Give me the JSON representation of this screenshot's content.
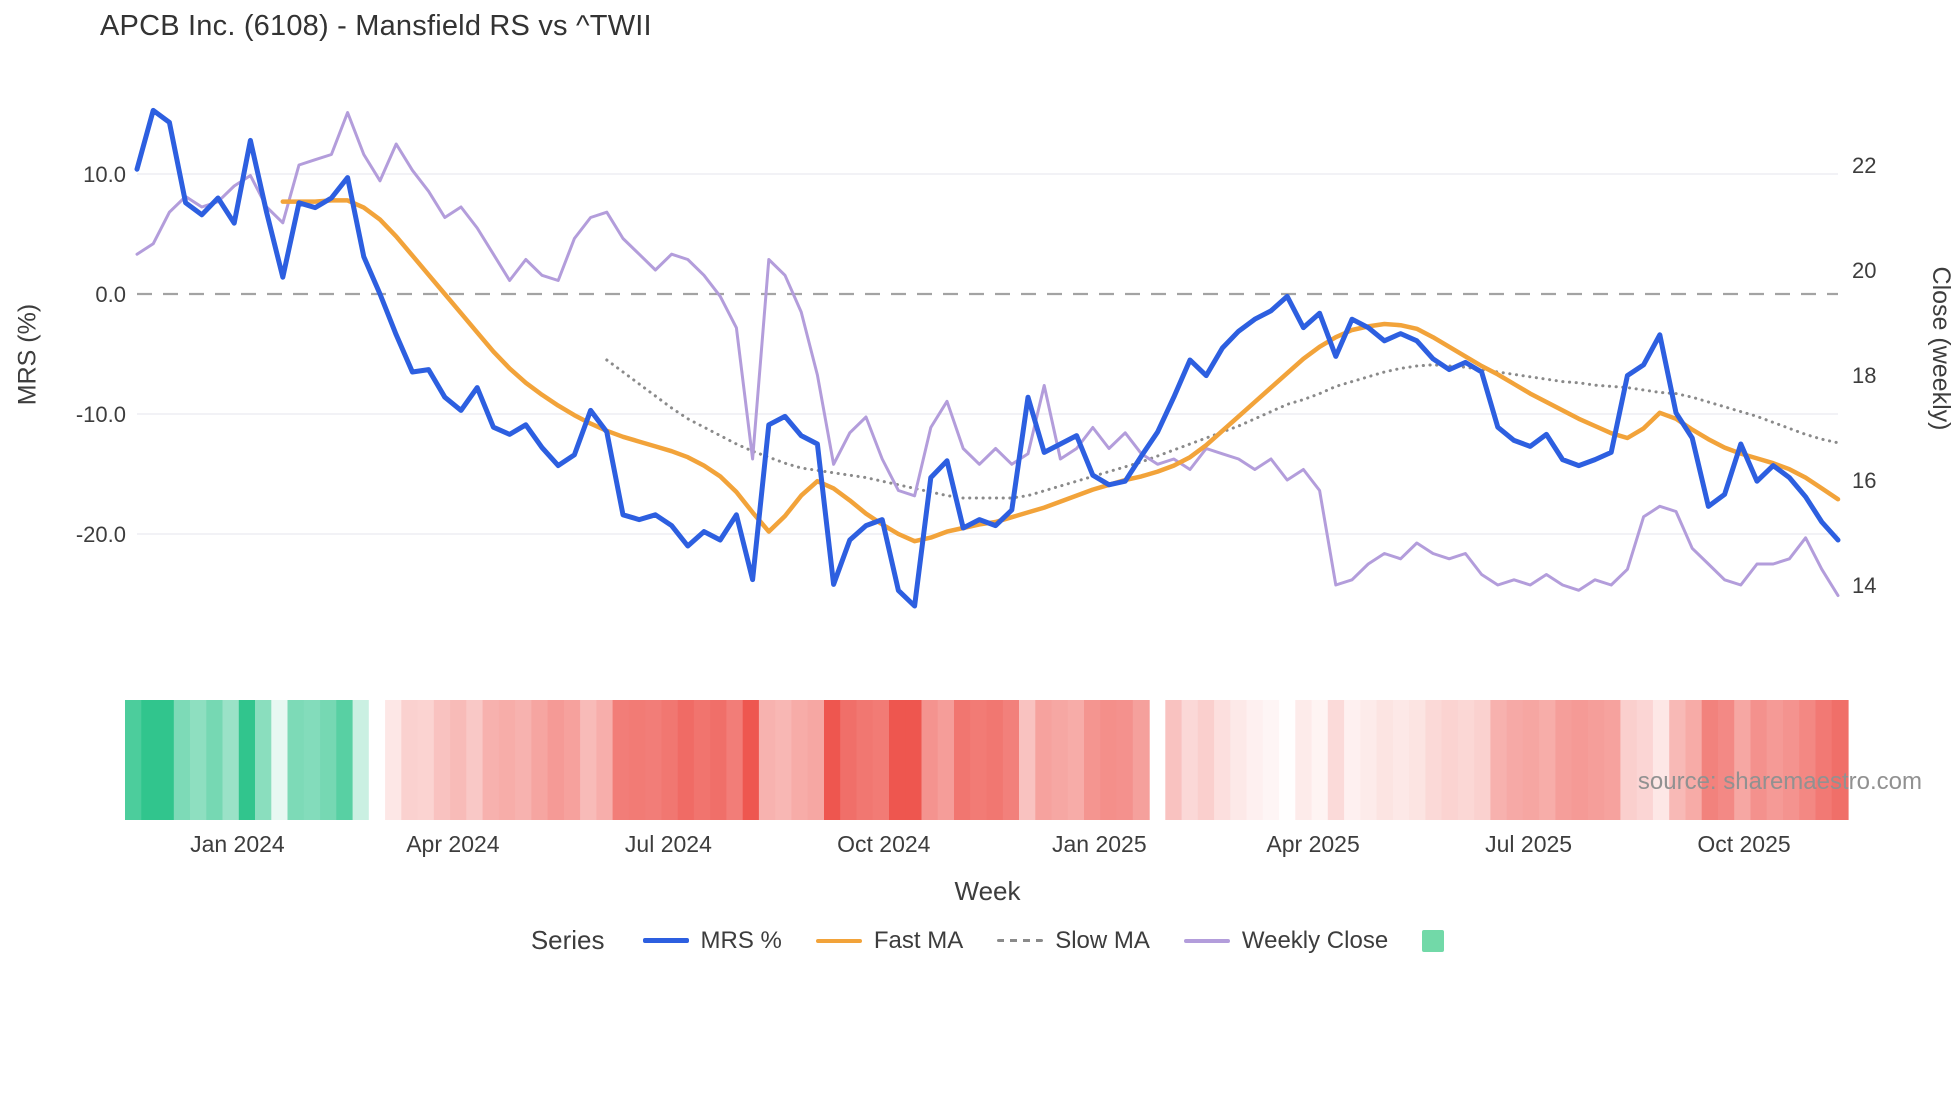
{
  "title": "APCB Inc. (6108) - Mansfield RS vs ^TWII",
  "source": "source: sharemaestro.com",
  "legend": {
    "title": "Series"
  },
  "colors": {
    "background": "#ffffff",
    "grid": "#eeeef3",
    "zero_line": "#a3a3a3",
    "text": "#3d3d3d",
    "source_text": "#919191"
  },
  "chart_data": {
    "type": "line",
    "title": "APCB Inc. (6108) - Mansfield RS vs ^TWII",
    "xlabel": "Week",
    "n_weeks": 106,
    "x_ticks": [
      {
        "pos": 6.2,
        "label": "Jan 2024"
      },
      {
        "pos": 19.5,
        "label": "Apr 2024"
      },
      {
        "pos": 32.8,
        "label": "Jul 2024"
      },
      {
        "pos": 46.1,
        "label": "Oct 2024"
      },
      {
        "pos": 59.4,
        "label": "Jan 2025"
      },
      {
        "pos": 72.6,
        "label": "Apr 2025"
      },
      {
        "pos": 85.9,
        "label": "Jul 2025"
      },
      {
        "pos": 99.2,
        "label": "Oct 2025"
      }
    ],
    "y_left": {
      "label": "MRS (%)",
      "range": [
        -28.9,
        17.3
      ],
      "ticks": [
        {
          "v": 10,
          "label": "10.0"
        },
        {
          "v": 0,
          "label": "0.0"
        },
        {
          "v": -10,
          "label": "-10.0"
        },
        {
          "v": -20,
          "label": "-20.0"
        }
      ]
    },
    "y_right": {
      "label": "Close (weekly)",
      "range": [
        12.9,
        23.5
      ],
      "ticks": [
        {
          "v": 22,
          "label": "22"
        },
        {
          "v": 20,
          "label": "20"
        },
        {
          "v": 18,
          "label": "18"
        },
        {
          "v": 16,
          "label": "16"
        },
        {
          "v": 14,
          "label": "14"
        }
      ]
    },
    "zero_line": 0,
    "series": [
      {
        "name": "MRS %",
        "color": "#2d5fe0",
        "style": "solid",
        "axis": "left",
        "width": 5,
        "values": [
          10.4,
          15.3,
          14.3,
          7.6,
          6.6,
          8.0,
          5.9,
          12.8,
          6.8,
          1.4,
          7.6,
          7.2,
          8.0,
          9.7,
          3.1,
          0.0,
          -3.4,
          -6.5,
          -6.3,
          -8.6,
          -9.7,
          -7.8,
          -11.1,
          -11.7,
          -10.9,
          -12.8,
          -14.3,
          -13.4,
          -9.7,
          -11.5,
          -18.4,
          -18.8,
          -18.4,
          -19.3,
          -21.0,
          -19.8,
          -20.5,
          -18.4,
          -23.8,
          -10.9,
          -10.2,
          -11.8,
          -12.5,
          -24.2,
          -20.5,
          -19.3,
          -18.8,
          -24.7,
          -26.0,
          -15.3,
          -13.9,
          -19.5,
          -18.8,
          -19.3,
          -18.0,
          -8.6,
          -13.2,
          -12.5,
          -11.8,
          -15.1,
          -15.9,
          -15.6,
          -13.5,
          -11.5,
          -8.6,
          -5.5,
          -6.8,
          -4.5,
          -3.1,
          -2.1,
          -1.4,
          -0.2,
          -2.8,
          -1.6,
          -5.2,
          -2.1,
          -2.8,
          -3.9,
          -3.3,
          -3.9,
          -5.4,
          -6.3,
          -5.7,
          -6.5,
          -11.1,
          -12.2,
          -12.7,
          -11.7,
          -13.8,
          -14.3,
          -13.8,
          -13.2,
          -6.8,
          -5.9,
          -3.4,
          -9.9,
          -12.0,
          -17.7,
          -16.7,
          -12.5,
          -15.6,
          -14.3,
          -15.3,
          -16.9,
          -19.0,
          -20.5
        ]
      },
      {
        "name": "Fast MA",
        "color": "#f2a33a",
        "style": "solid",
        "axis": "left",
        "width": 4.5,
        "values": [
          null,
          null,
          null,
          null,
          null,
          null,
          null,
          null,
          null,
          7.7,
          7.7,
          7.7,
          7.8,
          7.8,
          7.2,
          6.2,
          4.8,
          3.2,
          1.6,
          0.0,
          -1.6,
          -3.2,
          -4.8,
          -6.2,
          -7.4,
          -8.4,
          -9.3,
          -10.1,
          -10.8,
          -11.4,
          -11.9,
          -12.3,
          -12.7,
          -13.1,
          -13.6,
          -14.3,
          -15.2,
          -16.5,
          -18.2,
          -19.8,
          -18.5,
          -16.8,
          -15.6,
          -16.2,
          -17.2,
          -18.3,
          -19.2,
          -20.0,
          -20.6,
          -20.3,
          -19.8,
          -19.5,
          -19.2,
          -19.0,
          -18.6,
          -18.2,
          -17.8,
          -17.3,
          -16.8,
          -16.3,
          -15.9,
          -15.5,
          -15.2,
          -14.8,
          -14.3,
          -13.6,
          -12.6,
          -11.4,
          -10.2,
          -9.0,
          -7.8,
          -6.6,
          -5.4,
          -4.4,
          -3.6,
          -3.0,
          -2.7,
          -2.5,
          -2.6,
          -2.9,
          -3.6,
          -4.4,
          -5.2,
          -6.0,
          -6.7,
          -7.5,
          -8.3,
          -9.0,
          -9.7,
          -10.4,
          -11.0,
          -11.6,
          -12.0,
          -11.2,
          -9.9,
          -10.4,
          -11.3,
          -12.1,
          -12.8,
          -13.3,
          -13.7,
          -14.1,
          -14.6,
          -15.3,
          -16.2,
          -17.1
        ]
      },
      {
        "name": "Slow MA",
        "color": "#8a8a8a",
        "style": "dotted",
        "axis": "left",
        "width": 3,
        "values": [
          null,
          null,
          null,
          null,
          null,
          null,
          null,
          null,
          null,
          null,
          null,
          null,
          null,
          null,
          null,
          null,
          null,
          null,
          null,
          null,
          null,
          null,
          null,
          null,
          null,
          null,
          null,
          null,
          null,
          -5.5,
          -6.5,
          -7.5,
          -8.5,
          -9.5,
          -10.4,
          -11.1,
          -11.8,
          -12.5,
          -13.1,
          -13.6,
          -14.1,
          -14.5,
          -14.7,
          -14.9,
          -15.1,
          -15.3,
          -15.6,
          -15.9,
          -16.2,
          -16.5,
          -16.8,
          -17.0,
          -17.0,
          -17.0,
          -17.0,
          -16.8,
          -16.4,
          -16.0,
          -15.6,
          -15.2,
          -14.8,
          -14.4,
          -14.0,
          -13.5,
          -13.0,
          -12.5,
          -12.0,
          -11.5,
          -11.0,
          -10.4,
          -9.8,
          -9.2,
          -8.8,
          -8.3,
          -7.7,
          -7.3,
          -6.9,
          -6.5,
          -6.2,
          -6.0,
          -5.9,
          -6.0,
          -6.1,
          -6.3,
          -6.5,
          -6.7,
          -6.9,
          -7.1,
          -7.3,
          -7.4,
          -7.6,
          -7.7,
          -7.8,
          -8.0,
          -8.2,
          -8.3,
          -8.6,
          -9.0,
          -9.4,
          -9.8,
          -10.2,
          -10.7,
          -11.2,
          -11.7,
          -12.1,
          -12.4
        ]
      },
      {
        "name": "Weekly Close",
        "color": "#b39ddb",
        "style": "solid",
        "axis": "right",
        "width": 3,
        "values": [
          20.3,
          20.5,
          21.1,
          21.4,
          21.2,
          21.3,
          21.6,
          21.8,
          21.2,
          20.9,
          22.0,
          22.1,
          22.2,
          23.0,
          22.2,
          21.7,
          22.4,
          21.9,
          21.5,
          21.0,
          21.2,
          20.8,
          20.3,
          19.8,
          20.2,
          19.9,
          19.8,
          20.6,
          21.0,
          21.1,
          20.6,
          20.3,
          20.0,
          20.3,
          20.2,
          19.9,
          19.5,
          18.9,
          16.4,
          20.2,
          19.9,
          19.2,
          18.0,
          16.3,
          16.9,
          17.2,
          16.4,
          15.8,
          15.7,
          17.0,
          17.5,
          16.6,
          16.3,
          16.6,
          16.3,
          16.5,
          17.8,
          16.4,
          16.6,
          17.0,
          16.6,
          16.9,
          16.5,
          16.3,
          16.4,
          16.2,
          16.6,
          16.5,
          16.4,
          16.2,
          16.4,
          16.0,
          16.2,
          15.8,
          14.0,
          14.1,
          14.4,
          14.6,
          14.5,
          14.8,
          14.6,
          14.5,
          14.6,
          14.2,
          14.0,
          14.1,
          14.0,
          14.2,
          14.0,
          13.9,
          14.1,
          14.0,
          14.3,
          15.3,
          15.5,
          15.4,
          14.7,
          14.4,
          14.1,
          14.0,
          14.4,
          14.4,
          14.5,
          14.9,
          14.3,
          13.8
        ]
      }
    ],
    "heatmap": {
      "source_series": "MRS %",
      "gap_indices": [
        63
      ],
      "positive_color": "#31c58d",
      "negative_color": "#ee564f",
      "positive_max": 12,
      "negative_max": 24,
      "legend_swatch_color": "#72d9a8"
    }
  }
}
